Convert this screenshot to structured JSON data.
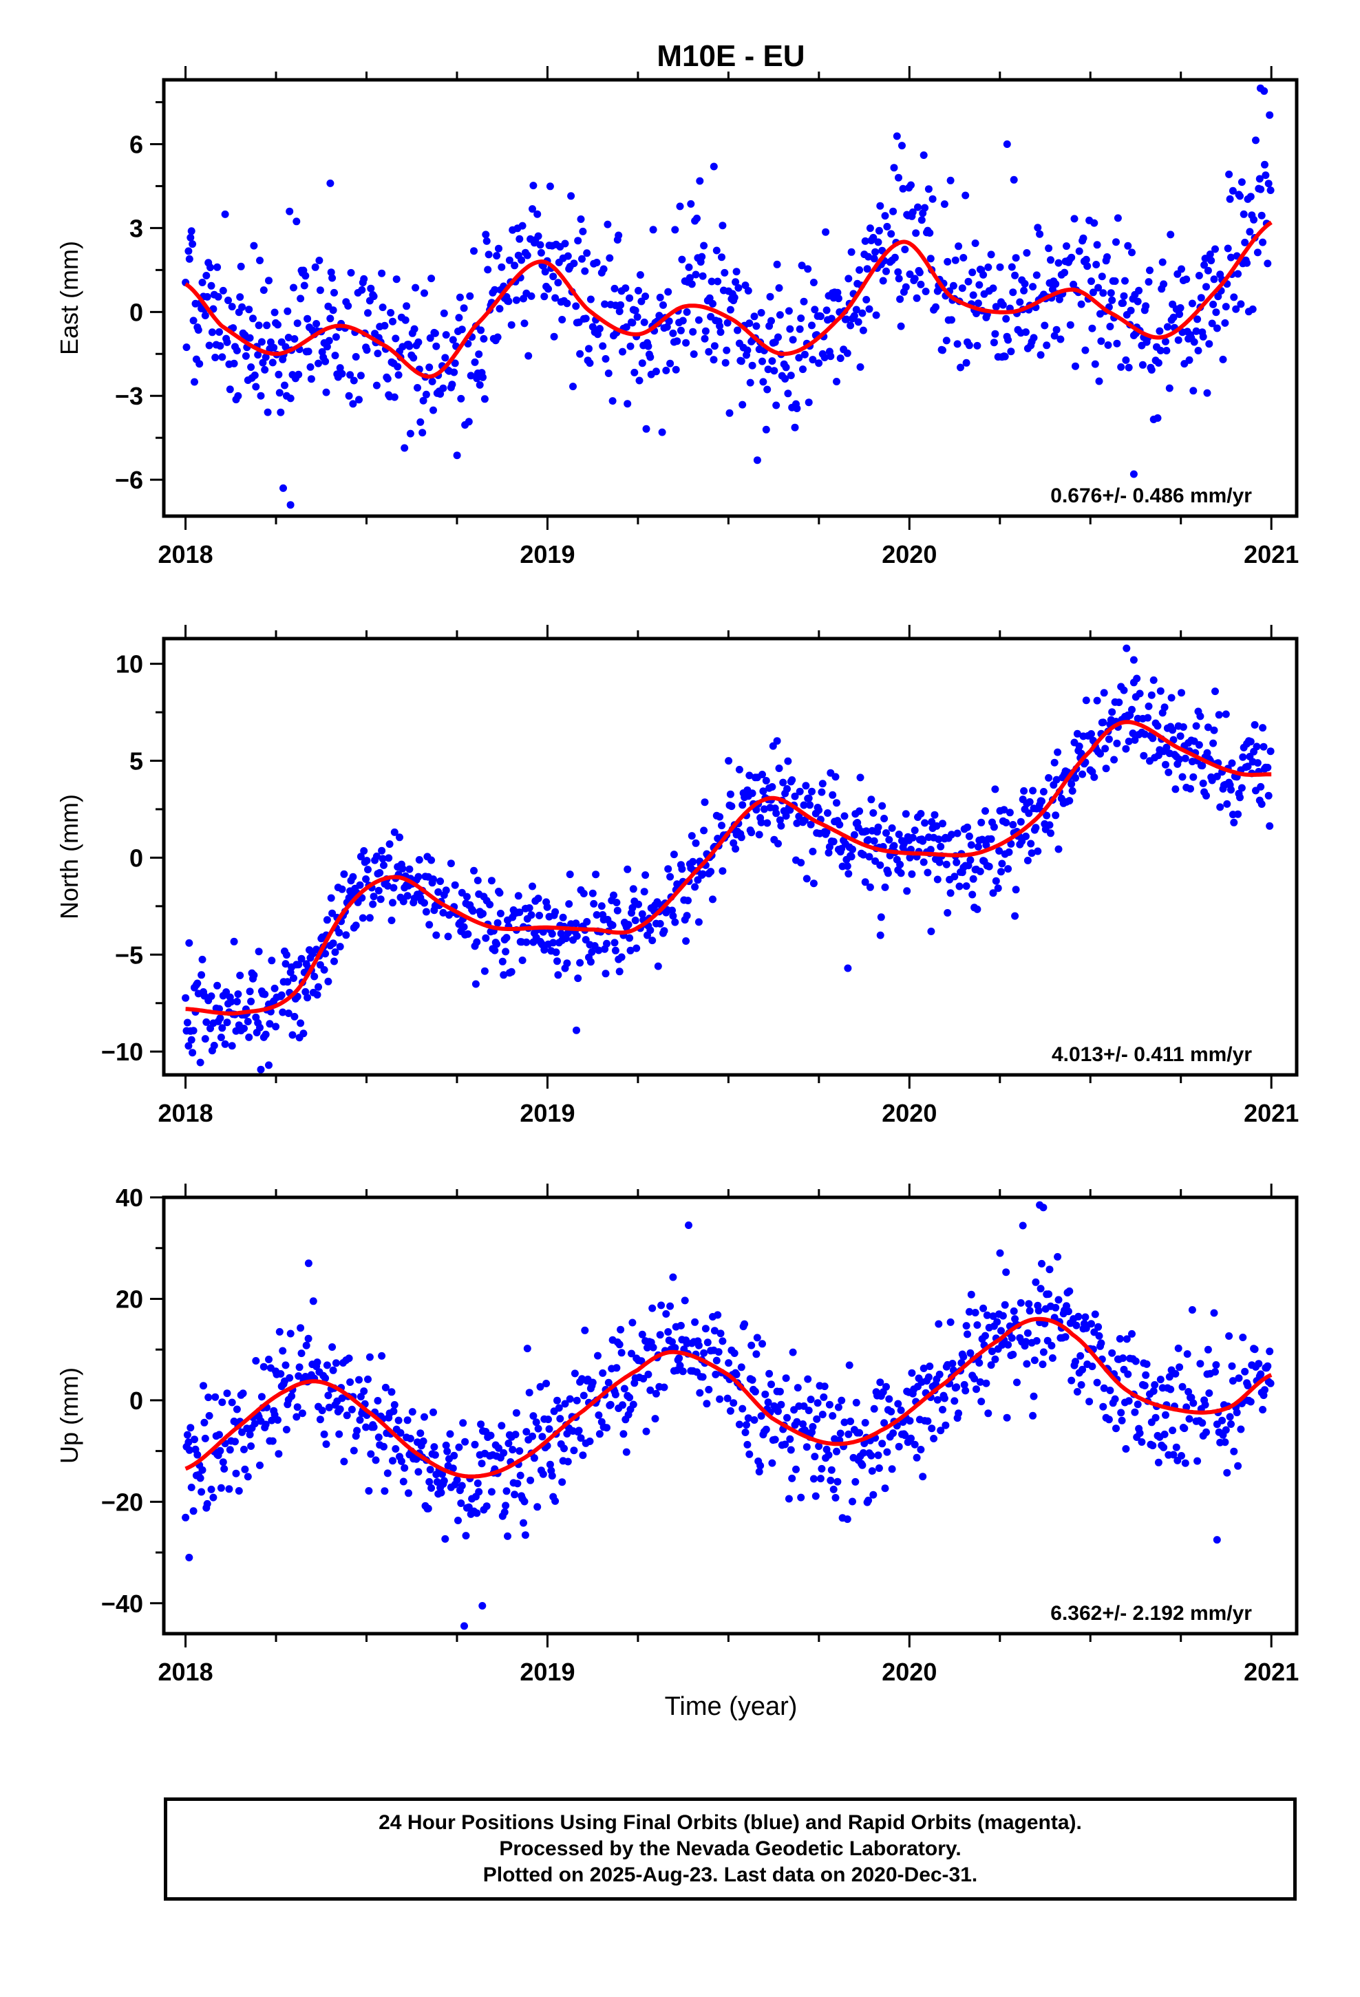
{
  "figure": {
    "title": "M10E - EU",
    "xlabel": "Time (year)",
    "footer": [
      "24 Hour Positions Using Final Orbits (blue) and Rapid Orbits (magenta).",
      "Processed by the Nevada Geodetic Laboratory.",
      "Plotted on 2025-Aug-23. Last data on 2020-Dec-31."
    ],
    "colors": {
      "points": "#0000ff",
      "model": "#ff0000",
      "frame": "#000000"
    }
  },
  "chart_data": [
    {
      "type": "scatter",
      "ylabel": "East (mm)",
      "rate_label": "0.676+/- 0.486 mm/yr",
      "xlim": [
        2017.94,
        2021.07
      ],
      "ylim": [
        -7.3,
        8.3
      ],
      "xticks": [
        2018,
        2019,
        2020,
        2021
      ],
      "yticks": [
        -6,
        -3,
        0,
        3,
        6
      ],
      "yticklabels": [
        "−6",
        "−3",
        "0",
        "3",
        "6"
      ],
      "scatter_sd": 1.4,
      "outliers": [
        [
          2018.29,
          -6.9
        ],
        [
          2018.27,
          -6.3
        ],
        [
          2019.97,
          4.8
        ],
        [
          2020.98,
          7.9
        ],
        [
          2020.97,
          8.0
        ],
        [
          2020.27,
          6.0
        ],
        [
          2018.4,
          4.6
        ],
        [
          2019.46,
          5.2
        ],
        [
          2020.62,
          -5.8
        ],
        [
          2019.58,
          -5.3
        ]
      ],
      "series": [
        {
          "name": "",
          "x": [
            2018.0,
            2018.1,
            2018.25,
            2018.42,
            2018.55,
            2018.68,
            2018.8,
            2018.98,
            2019.12,
            2019.25,
            2019.38,
            2019.5,
            2019.65,
            2019.8,
            2019.98,
            2020.12,
            2020.28,
            2020.45,
            2020.55,
            2020.7,
            2020.85,
            2021.0
          ],
          "y": [
            1.0,
            -0.5,
            -1.5,
            -0.5,
            -1.2,
            -2.3,
            -0.5,
            1.8,
            0.0,
            -0.8,
            0.2,
            -0.2,
            -1.5,
            -0.3,
            2.5,
            0.5,
            0.0,
            0.8,
            0.0,
            -0.9,
            0.8,
            3.2
          ]
        }
      ]
    },
    {
      "type": "scatter",
      "ylabel": "North (mm)",
      "rate_label": "4.013+/- 0.411 mm/yr",
      "xlim": [
        2017.94,
        2021.07
      ],
      "ylim": [
        -11.2,
        11.3
      ],
      "xticks": [
        2018,
        2019,
        2020,
        2021
      ],
      "yticks": [
        -10,
        -5,
        0,
        5,
        10
      ],
      "yticklabels": [
        "−10",
        "−5",
        "0",
        "5",
        "10"
      ],
      "scatter_sd": 1.2,
      "outliers": [
        [
          2019.08,
          -8.9
        ],
        [
          2019.83,
          -5.7
        ],
        [
          2019.92,
          -4.0
        ],
        [
          2020.06,
          -3.8
        ],
        [
          2020.6,
          10.8
        ],
        [
          2020.62,
          10.2
        ],
        [
          2018.23,
          -10.7
        ],
        [
          2018.01,
          -4.4
        ]
      ],
      "series": [
        {
          "name": "",
          "x": [
            2018.0,
            2018.15,
            2018.3,
            2018.45,
            2018.58,
            2018.72,
            2018.85,
            2019.0,
            2019.12,
            2019.25,
            2019.42,
            2019.6,
            2019.75,
            2019.9,
            2020.05,
            2020.2,
            2020.35,
            2020.5,
            2020.6,
            2020.75,
            2020.9,
            2021.0
          ],
          "y": [
            -7.8,
            -8.0,
            -7.0,
            -2.5,
            -1.0,
            -2.5,
            -3.6,
            -3.6,
            -3.7,
            -3.6,
            -0.5,
            3.0,
            1.8,
            0.5,
            0.2,
            0.3,
            2.0,
            5.5,
            7.0,
            5.6,
            4.4,
            4.3
          ]
        }
      ]
    },
    {
      "type": "scatter",
      "ylabel": "Up (mm)",
      "rate_label": "6.362+/- 2.192 mm/yr",
      "xlim": [
        2017.94,
        2021.07
      ],
      "ylim": [
        -46,
        40
      ],
      "xticks": [
        2018,
        2019,
        2020,
        2021
      ],
      "yticks": [
        -40,
        -20,
        0,
        20,
        40
      ],
      "yticklabels": [
        "−40",
        "−20",
        "0",
        "20",
        "40"
      ],
      "scatter_sd": 6.0,
      "outliers": [
        [
          2018.01,
          -31.0
        ],
        [
          2018.77,
          -44.5
        ],
        [
          2018.82,
          -40.5
        ],
        [
          2020.36,
          38.5
        ],
        [
          2020.37,
          38.0
        ],
        [
          2019.39,
          34.5
        ],
        [
          2020.85,
          -27.5
        ],
        [
          2018.34,
          27.0
        ]
      ],
      "series": [
        {
          "name": "",
          "x": [
            2018.0,
            2018.15,
            2018.28,
            2018.38,
            2018.5,
            2018.65,
            2018.78,
            2018.92,
            2019.1,
            2019.25,
            2019.35,
            2019.5,
            2019.62,
            2019.78,
            2019.92,
            2020.1,
            2020.25,
            2020.35,
            2020.45,
            2020.6,
            2020.75,
            2020.88,
            2021.0
          ],
          "y": [
            -13.5,
            -5.0,
            2.0,
            3.5,
            -2.0,
            -11.0,
            -15.0,
            -12.0,
            -2.0,
            6.0,
            9.5,
            5.0,
            -3.5,
            -8.5,
            -6.0,
            3.5,
            12.0,
            16.0,
            13.0,
            2.0,
            -2.0,
            -1.5,
            5.0
          ]
        }
      ]
    }
  ]
}
